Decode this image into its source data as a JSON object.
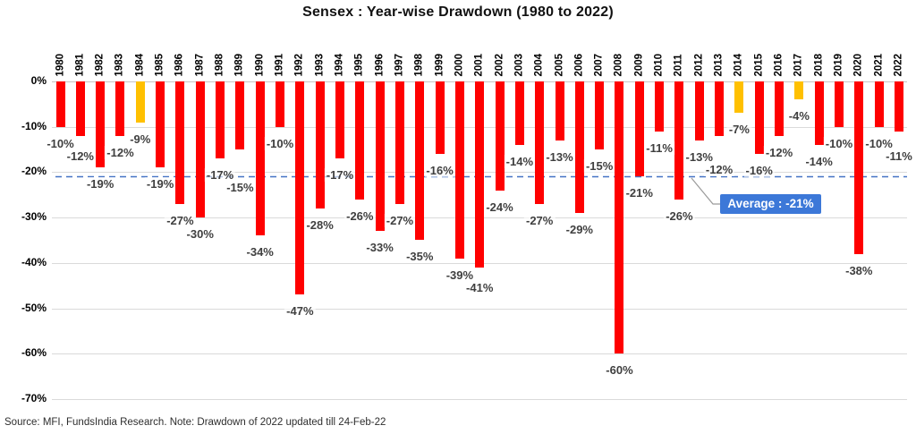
{
  "chart_data": {
    "type": "bar",
    "title": "Sensex : Year-wise Drawdown (1980 to 2022)",
    "categories": [
      "1980",
      "1981",
      "1982",
      "1983",
      "1984",
      "1985",
      "1986",
      "1987",
      "1988",
      "1989",
      "1990",
      "1991",
      "1992",
      "1993",
      "1994",
      "1995",
      "1996",
      "1997",
      "1998",
      "1999",
      "2000",
      "2001",
      "2002",
      "2003",
      "2004",
      "2005",
      "2006",
      "2007",
      "2008",
      "2009",
      "2010",
      "2011",
      "2012",
      "2013",
      "2014",
      "2015",
      "2016",
      "2017",
      "2018",
      "2019",
      "2020",
      "2021",
      "2022"
    ],
    "values": [
      -10,
      -12,
      -19,
      -12,
      -9,
      -19,
      -27,
      -30,
      -17,
      -15,
      -34,
      -10,
      -47,
      -28,
      -17,
      -26,
      -33,
      -27,
      -35,
      -16,
      -39,
      -41,
      -24,
      -14,
      -27,
      -13,
      -29,
      -15,
      -60,
      -21,
      -11,
      -26,
      -13,
      -12,
      -7,
      -16,
      -12,
      -4,
      -14,
      -10,
      -38,
      -10,
      -11
    ],
    "labels": [
      "-10%",
      "-12%",
      "-19%",
      "-12%",
      "-9%",
      "-19%",
      "-27%",
      "-30%",
      "-17%",
      "-15%",
      "-34%",
      "-10%",
      "-47%",
      "-28%",
      "-17%",
      "-26%",
      "-33%",
      "-27%",
      "-35%",
      "-16%",
      "-39%",
      "-41%",
      "-24%",
      "-14%",
      "-27%",
      "-13%",
      "-29%",
      "-15%",
      "-60%",
      "-21%",
      "-11%",
      "-26%",
      "-13%",
      "-12%",
      "-7%",
      "-16%",
      "-12%",
      "-4%",
      "-14%",
      "-10%",
      "-38%",
      "-10%",
      "-11%"
    ],
    "highlight_years": [
      "1984",
      "2014",
      "2017"
    ],
    "colors": {
      "bar": "#FF0000",
      "highlight": "#FFC000",
      "average_line": "#4472C4",
      "average_box": "#3C78D8",
      "grid": "#DADADA",
      "label_text": "#3F3F3F"
    },
    "y_axis": {
      "ticks": [
        "0%",
        "-10%",
        "-20%",
        "-30%",
        "-40%",
        "-50%",
        "-60%",
        "-70%"
      ],
      "ylim": [
        -70,
        0
      ],
      "grid": true
    },
    "average": {
      "value": -21,
      "label": "Average : -21%"
    },
    "legend": "none",
    "source_note": "Source: MFI, FundsIndia Research. Note: Drawdown of 2022 updated till 24-Feb-22"
  }
}
